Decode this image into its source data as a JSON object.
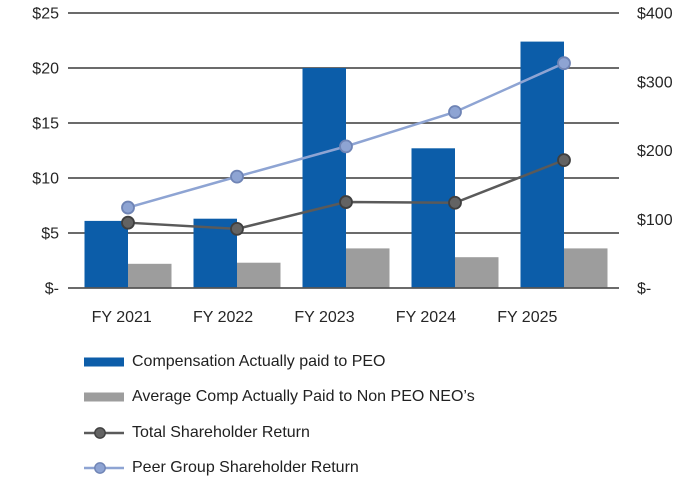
{
  "chart_data": {
    "type": "bar+line-combo",
    "categories": [
      "FY 2021",
      "FY 2022",
      "FY 2023",
      "FY 2024",
      "FY 2025"
    ],
    "series": [
      {
        "name": "Compensation Actually paid to PEO",
        "type": "bar",
        "axis": "left",
        "color": "#0C5DA9",
        "values": [
          6.1,
          6.3,
          20.0,
          12.7,
          22.4
        ]
      },
      {
        "name": "Average Comp Actually Paid to Non PEO NEO’s",
        "type": "bar",
        "axis": "left",
        "color": "#9D9D9D",
        "values": [
          2.2,
          2.3,
          3.6,
          2.8,
          3.6
        ]
      },
      {
        "name": "Total Shareholder Return",
        "type": "line",
        "axis": "right",
        "color": "#5A5A5A",
        "marker_fill": "#636363",
        "marker_border": "#3F3F3F",
        "values": [
          95,
          86,
          125,
          124,
          186
        ]
      },
      {
        "name": "Peer Group Shareholder Return",
        "type": "line",
        "axis": "right",
        "color": "#8EA4D3",
        "marker_fill": "#8EA4D3",
        "marker_border": "#6F84B5",
        "values": [
          117,
          162,
          206,
          256,
          327
        ]
      }
    ],
    "left_axis": {
      "ticks": [
        "$25",
        "$20",
        "$15",
        "$10",
        "$5",
        "$-"
      ],
      "values": [
        25,
        20,
        15,
        10,
        5,
        0
      ],
      "max": 25
    },
    "right_axis": {
      "ticks": [
        "$400",
        "$300",
        "$200",
        "$100",
        "$-"
      ],
      "values": [
        400,
        300,
        200,
        100,
        0
      ],
      "max": 400
    },
    "grid": true,
    "gridline_color": "#565656",
    "legend_position": "bottom-left",
    "title": "",
    "xlabel": "",
    "ylabel_left": "",
    "ylabel_right": ""
  }
}
